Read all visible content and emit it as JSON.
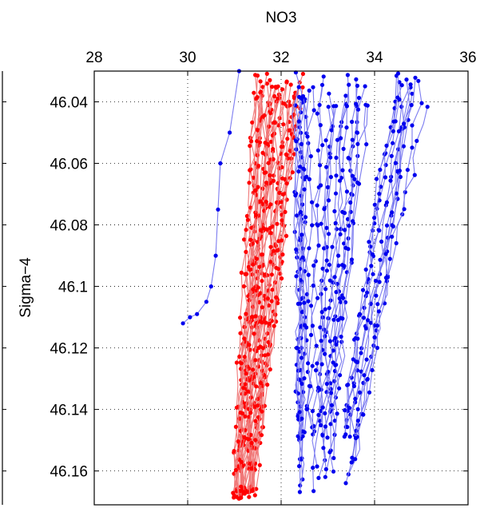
{
  "chart_data": {
    "type": "line",
    "xlabel": "NO3",
    "ylabel": "Sigma−4",
    "xlim": [
      28,
      36
    ],
    "ylim": [
      46.03,
      46.171
    ],
    "y_reversed": true,
    "x_axis_position": "top",
    "grid": true,
    "grid_style": "dotted",
    "xticks": [
      "28",
      "30",
      "32",
      "34",
      "36"
    ],
    "yticks": [
      "46.04",
      "46.06",
      "46.08",
      "46.1",
      "46.12",
      "46.14",
      "46.16"
    ],
    "series": [
      {
        "color": "#ff0000",
        "line_color": "#f07878",
        "marker": "dot",
        "summary": {
          "x_center_top": 31.9,
          "x_center_bottom": 31.2,
          "x_spread": 0.6,
          "profile_count": 38
        }
      },
      {
        "color": "#0000ee",
        "line_color": "#7c7cf0",
        "marker": "dot",
        "summary": {
          "x_center_top": 33.7,
          "x_center_bottom": 33.0,
          "x_spread": 1.4,
          "profile_count": 40
        }
      },
      {
        "color": "#0000ee",
        "line_color": "#7c7cf0",
        "marker": "dot",
        "points": [
          [
            31.1,
            46.03
          ],
          [
            30.9,
            46.05
          ],
          [
            30.7,
            46.06
          ],
          [
            30.65,
            46.075
          ],
          [
            30.6,
            46.09
          ],
          [
            30.5,
            46.1
          ],
          [
            30.4,
            46.105
          ],
          [
            30.2,
            46.109
          ],
          [
            30.05,
            46.11
          ],
          [
            29.9,
            46.112
          ]
        ]
      }
    ]
  }
}
